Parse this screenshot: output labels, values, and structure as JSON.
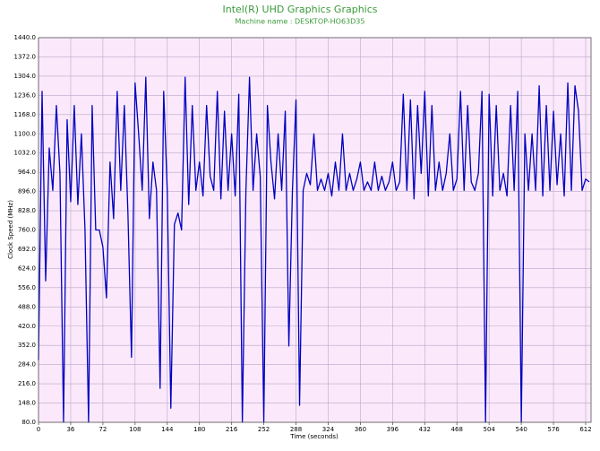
{
  "chart_data": {
    "type": "line",
    "title": "Intel(R) UHD Graphics Graphics",
    "subtitle": "Machine name : DESKTOP-HO63D35",
    "y_label": "Clock Speed (MHz)",
    "x_label": "Time (seconds)",
    "color": "#0000c0",
    "grid": true,
    "xlim": [
      0,
      618
    ],
    "ylim": [
      80,
      1440
    ],
    "xticks": [
      0,
      36,
      72,
      108,
      144,
      180,
      216,
      252,
      288,
      324,
      360,
      396,
      432,
      468,
      504,
      540,
      576,
      612
    ],
    "yticks": [
      {
        "value": 80,
        "label": "80.0"
      },
      {
        "value": 148,
        "label": "148.0"
      },
      {
        "value": 216,
        "label": "216.0"
      },
      {
        "value": 284,
        "label": "284.0"
      },
      {
        "value": 352,
        "label": "352.0"
      },
      {
        "value": 420,
        "label": "420.0"
      },
      {
        "value": 488,
        "label": "488.0"
      },
      {
        "value": 556,
        "label": "556.0"
      },
      {
        "value": 624,
        "label": "624.0"
      },
      {
        "value": 692,
        "label": "692.0"
      },
      {
        "value": 760,
        "label": "760.0"
      },
      {
        "value": 828,
        "label": "828.0"
      },
      {
        "value": 896,
        "label": "896.0"
      },
      {
        "value": 964,
        "label": "964.0"
      },
      {
        "value": 1032,
        "label": "1032.0"
      },
      {
        "value": 1100,
        "label": "1100.0"
      },
      {
        "value": 1168,
        "label": "1168.0"
      },
      {
        "value": 1236,
        "label": "1236.0"
      },
      {
        "value": 1304,
        "label": "1304.0"
      },
      {
        "value": 1372,
        "label": "1372.0"
      },
      {
        "value": 1440,
        "label": "1440.0"
      }
    ],
    "x": [
      0,
      4,
      8,
      12,
      16,
      20,
      24,
      28,
      32,
      36,
      40,
      44,
      48,
      52,
      56,
      60,
      64,
      68,
      72,
      76,
      80,
      84,
      88,
      92,
      96,
      100,
      104,
      108,
      112,
      116,
      120,
      124,
      128,
      132,
      136,
      140,
      144,
      148,
      152,
      156,
      160,
      164,
      168,
      172,
      176,
      180,
      184,
      188,
      192,
      196,
      200,
      204,
      208,
      212,
      216,
      220,
      224,
      228,
      232,
      236,
      240,
      244,
      248,
      252,
      256,
      260,
      264,
      268,
      272,
      276,
      280,
      284,
      288,
      292,
      296,
      300,
      304,
      308,
      312,
      316,
      320,
      324,
      328,
      332,
      336,
      340,
      344,
      348,
      352,
      356,
      360,
      364,
      368,
      372,
      376,
      380,
      384,
      388,
      392,
      396,
      400,
      404,
      408,
      412,
      416,
      420,
      424,
      428,
      432,
      436,
      440,
      444,
      448,
      452,
      456,
      460,
      464,
      468,
      472,
      476,
      480,
      484,
      488,
      492,
      496,
      500,
      504,
      508,
      512,
      516,
      520,
      524,
      528,
      532,
      536,
      540,
      544,
      548,
      552,
      556,
      560,
      564,
      568,
      572,
      576,
      580,
      584,
      588,
      592,
      596,
      600,
      604,
      608,
      612,
      616
    ],
    "values": [
      300,
      1250,
      580,
      1050,
      900,
      1200,
      960,
      80,
      1150,
      860,
      1200,
      850,
      1100,
      760,
      80,
      1200,
      760,
      760,
      700,
      520,
      1000,
      800,
      1250,
      900,
      1200,
      820,
      310,
      1280,
      1100,
      900,
      1300,
      800,
      1000,
      900,
      200,
      1250,
      900,
      130,
      780,
      820,
      760,
      1300,
      850,
      1200,
      900,
      1000,
      880,
      1200,
      950,
      900,
      1250,
      870,
      1180,
      900,
      1100,
      880,
      1240,
      80,
      900,
      1300,
      900,
      1100,
      950,
      80,
      1200,
      1000,
      870,
      1100,
      900,
      1180,
      350,
      900,
      1220,
      140,
      900,
      960,
      920,
      1100,
      900,
      940,
      900,
      960,
      880,
      1000,
      900,
      1100,
      900,
      960,
      900,
      940,
      1000,
      900,
      930,
      900,
      1000,
      900,
      950,
      900,
      930,
      1000,
      900,
      930,
      1240,
      900,
      1220,
      870,
      1200,
      960,
      1250,
      880,
      1200,
      900,
      1000,
      900,
      960,
      1100,
      900,
      940,
      1250,
      900,
      1200,
      930,
      900,
      960,
      1250,
      80,
      1240,
      880,
      1200,
      900,
      960,
      880,
      1200,
      900,
      1250,
      80,
      1100,
      900,
      1100,
      900,
      1270,
      880,
      1200,
      900,
      1180,
      920,
      1100,
      880,
      1280,
      900,
      1270,
      1180,
      900,
      940,
      930
    ]
  }
}
